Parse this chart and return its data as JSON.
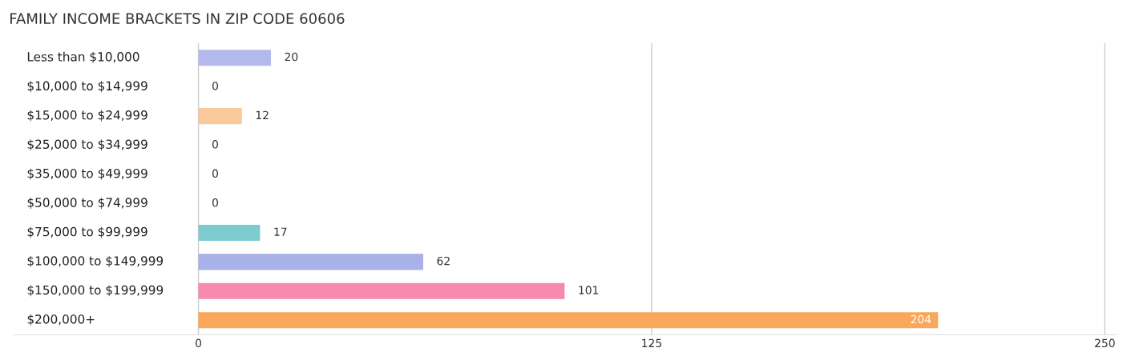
{
  "chart_data": {
    "type": "bar",
    "orientation": "horizontal",
    "title": "FAMILY INCOME BRACKETS IN ZIP CODE 60606",
    "categories": [
      "Less than $10,000",
      "$10,000 to $14,999",
      "$15,000 to $24,999",
      "$25,000 to $34,999",
      "$35,000 to $49,999",
      "$50,000 to $74,999",
      "$75,000 to $99,999",
      "$100,000 to $149,999",
      "$150,000 to $199,999",
      "$200,000+"
    ],
    "values": [
      20,
      0,
      12,
      0,
      0,
      0,
      17,
      62,
      101,
      204
    ],
    "colors": [
      "#b3b9ec",
      "#f7a8c4",
      "#f9c99b",
      "#f1aeab",
      "#a9c8ee",
      "#cdb1d6",
      "#7ccbcf",
      "#a8b1e8",
      "#f58aac",
      "#f9a85b"
    ],
    "xlim": [
      -51,
      253
    ],
    "xticks": [
      0,
      125,
      250
    ],
    "grid": "x",
    "data_labels": true
  }
}
